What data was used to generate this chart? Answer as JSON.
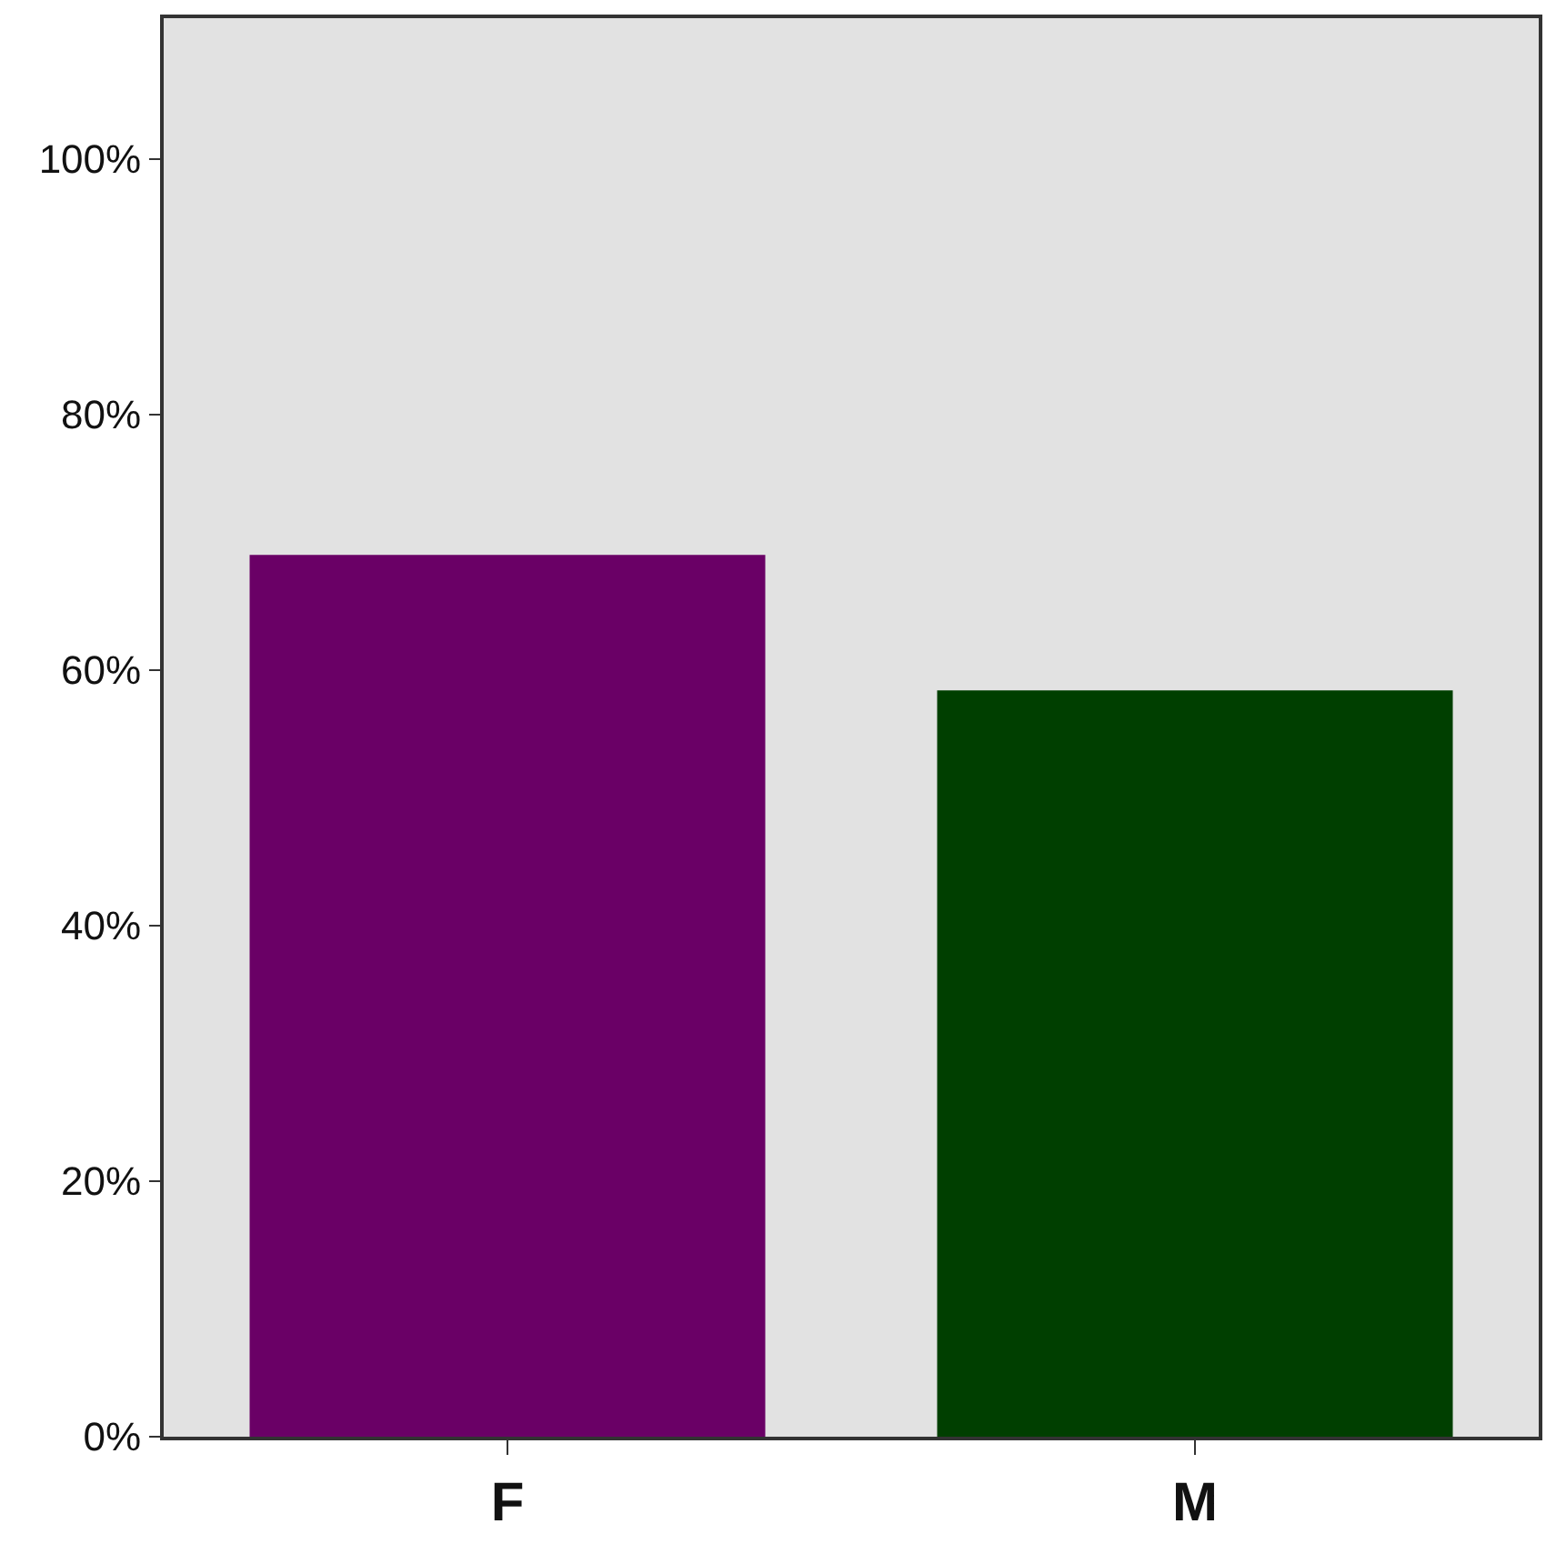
{
  "chart_data": {
    "type": "bar",
    "categories": [
      "F",
      "M"
    ],
    "values": [
      69,
      58.4
    ],
    "colors": [
      "#6a0066",
      "#003f00"
    ],
    "ylim": [
      0,
      111
    ],
    "yticks": [
      {
        "value": 0,
        "label": "0%"
      },
      {
        "value": 20,
        "label": "20%"
      },
      {
        "value": 40,
        "label": "40%"
      },
      {
        "value": 60,
        "label": "60%"
      },
      {
        "value": 80,
        "label": "80%"
      },
      {
        "value": 100,
        "label": "100%"
      }
    ],
    "grid": false
  }
}
